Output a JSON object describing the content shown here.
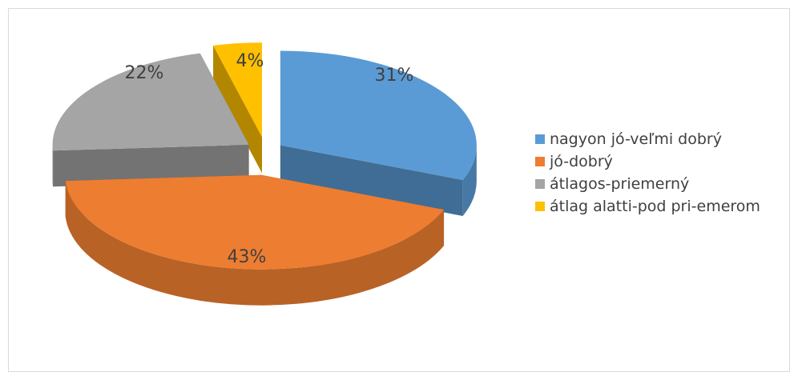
{
  "chart_data": {
    "type": "pie",
    "categories": [
      "nagyon jó-veľmi dobrý",
      "jó-dobrý",
      "átlagos-priemerný",
      "átlag alatti-pod pri-emerom"
    ],
    "values": [
      31,
      43,
      22,
      4
    ],
    "value_labels": [
      "31%",
      "43%",
      "22%",
      "4%"
    ],
    "colors": [
      "#5b9bd5",
      "#ed7d31",
      "#a5a5a5",
      "#ffc000"
    ],
    "legend": "right"
  }
}
